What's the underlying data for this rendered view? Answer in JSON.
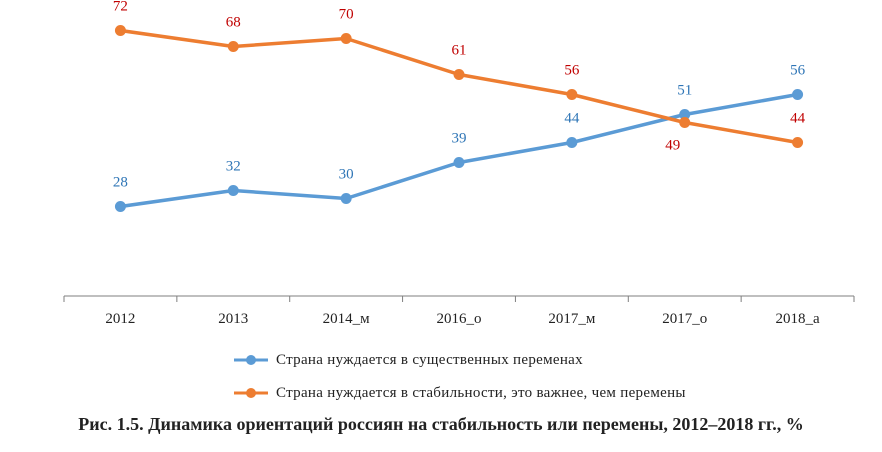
{
  "chart_data": {
    "type": "line",
    "categories": [
      "2012",
      "2013",
      "2014_м",
      "2016_о",
      "2017_м",
      "2017_о",
      "2018_а"
    ],
    "series": [
      {
        "name": "Страна нуждается в существенных переменах",
        "color": "#5b9bd5",
        "label_color": "#2e75b6",
        "values": [
          28,
          32,
          30,
          39,
          44,
          51,
          56
        ]
      },
      {
        "name": "Страна нуждается в стабильности, это важнее, чем перемены",
        "color": "#ed7d31",
        "label_color": "#c00000",
        "values": [
          72,
          68,
          70,
          61,
          56,
          49,
          44
        ]
      }
    ],
    "ylim": [
      0,
      80
    ],
    "grid": false,
    "legend_position": "bottom",
    "title": ""
  },
  "caption": "Рис. 1.5. Динамика ориентаций россиян на стабильность или перемены, 2012‒2018  гг., %"
}
